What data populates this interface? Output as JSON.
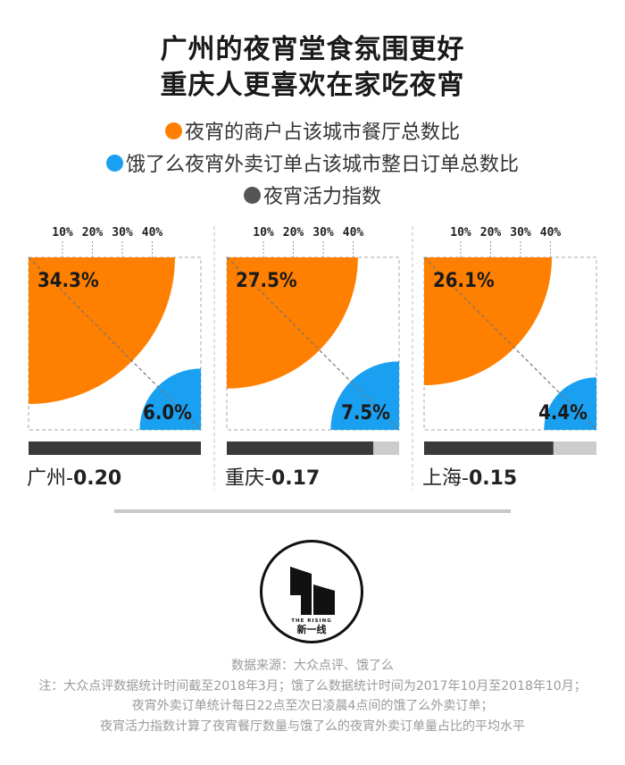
{
  "title": {
    "line1": "广州的夜宵堂食氛围更好",
    "line2": "重庆人更喜欢在家吃夜宵"
  },
  "legend": [
    {
      "label": "夜宵的商户占该城市餐厅总数比",
      "color": "#ff7f00"
    },
    {
      "label": "饿了么夜宵外卖订单占该城市整日订单总数比",
      "color": "#1aa0f0"
    },
    {
      "label": "夜宵活力指数",
      "color": "#555555"
    }
  ],
  "chart_data": {
    "type": "quarter-circle-comparison",
    "scale_ticks": [
      "10%",
      "20%",
      "30%",
      "40%"
    ],
    "series": [
      {
        "key": "merchant_share",
        "name": "夜宵的商户占该城市餐厅总数比",
        "unit": "%",
        "color": "#ff7f00"
      },
      {
        "key": "delivery_share",
        "name": "饿了么夜宵外卖订单占该城市整日订单总数比",
        "unit": "%",
        "color": "#1aa0f0"
      },
      {
        "key": "vitality_index",
        "name": "夜宵活力指数",
        "color": "#3a3a3a"
      }
    ],
    "cities": [
      {
        "city": "广州",
        "merchant_share": 34.3,
        "merchant_label": "34.3%",
        "delivery_share": 6.0,
        "delivery_label": "6.0%",
        "vitality_index": 0.2,
        "vitality_label": "0.20"
      },
      {
        "city": "重庆",
        "merchant_share": 27.5,
        "merchant_label": "27.5%",
        "delivery_share": 7.5,
        "delivery_label": "7.5%",
        "vitality_index": 0.17,
        "vitality_label": "0.17"
      },
      {
        "city": "上海",
        "merchant_share": 26.1,
        "merchant_label": "26.1%",
        "delivery_share": 4.4,
        "delivery_label": "4.4%",
        "vitality_index": 0.15,
        "vitality_label": "0.15"
      }
    ],
    "city_separator": "-",
    "bar_max": 0.2
  },
  "logo": {
    "caption_small": "THE RISING",
    "caption": "新一线"
  },
  "notes": [
    "数据来源：大众点评、饿了么",
    "注：大众点评数据统计时间截至2018年3月；饿了么数据统计时间为2017年10月至2018年10月；",
    "夜宵外卖订单统计每日22点至次日凌晨4点间的饿了么外卖订单；",
    "夜宵活力指数计算了夜宵餐厅数量与饿了么的夜宵外卖订单量占比的平均水平"
  ]
}
